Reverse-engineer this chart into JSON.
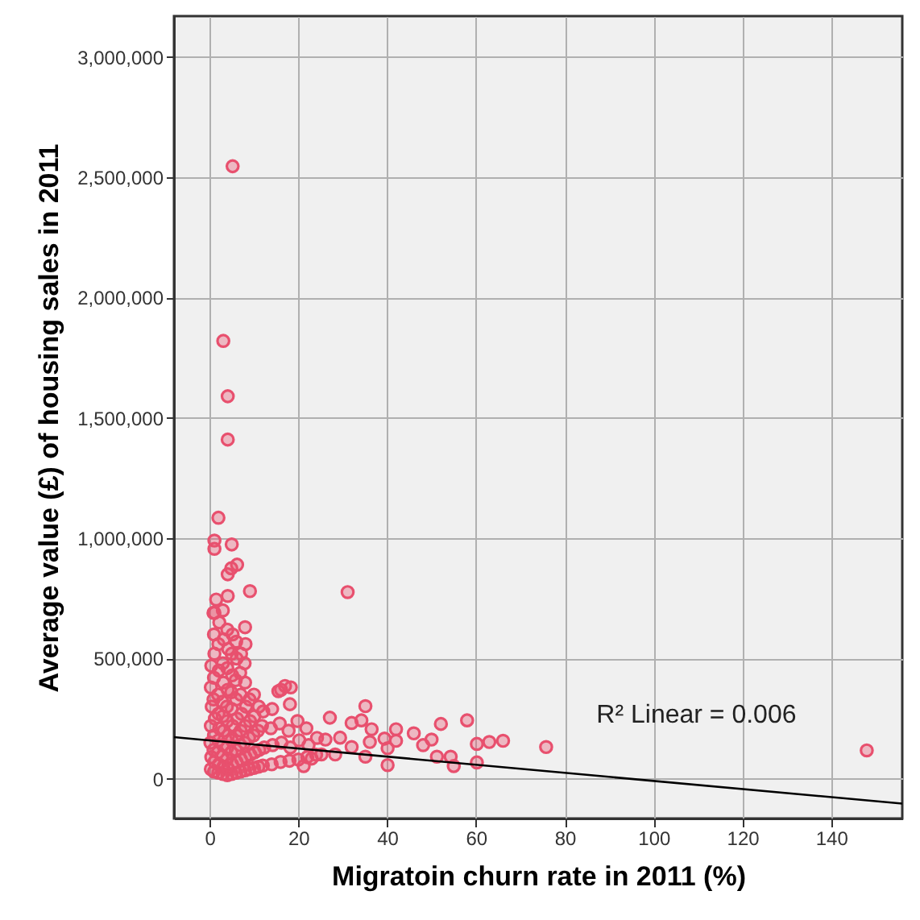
{
  "chart_data": {
    "type": "scatter",
    "xlabel": "Migratoin churn rate in 2011 (%)",
    "ylabel": "Average value (£) of housing sales in 2011",
    "xlim": [
      -8,
      156
    ],
    "ylim": [
      -165000,
      3170000
    ],
    "xticks": [
      0,
      20,
      40,
      60,
      80,
      100,
      120,
      140
    ],
    "yticks": [
      {
        "value": 0,
        "label": "0"
      },
      {
        "value": 500000,
        "label": "500,000"
      },
      {
        "value": 1000000,
        "label": "1,000,000"
      },
      {
        "value": 1500000,
        "label": "1,500,000"
      },
      {
        "value": 2000000,
        "label": "2,000,000"
      },
      {
        "value": 2500000,
        "label": "2,500,000"
      },
      {
        "value": 3000000,
        "label": "3,000,000"
      }
    ],
    "grid": true,
    "annotations": [
      "R² Linear = 0.006"
    ],
    "series": [
      {
        "marker": "circle",
        "color": "#e8506e",
        "x": [
          5.2,
          3.1,
          4.1,
          4.1,
          2,
          1.1,
          1.1,
          5,
          6.2,
          4.9,
          4.1,
          4.1,
          9.1,
          1.5,
          1.1,
          31.1,
          27.1,
          35.1,
          32,
          34.2,
          36.5,
          42,
          52.1,
          58,
          46,
          50,
          63,
          66.1,
          60.2,
          75.8,
          148,
          60.2,
          55,
          54.3,
          51.2,
          40.1,
          48.1,
          40.1,
          35.1,
          32,
          39.4,
          29.4,
          26.1,
          23,
          21.2,
          28.3,
          25.2,
          36.1,
          42,
          17,
          15.5,
          0.3,
          0.4,
          0.2,
          0.3,
          0.5,
          0.3,
          0.4,
          1,
          1.1,
          0.9,
          1,
          1.2,
          0.9,
          1,
          1.1,
          1,
          0.9,
          2,
          2.1,
          1.9,
          2,
          2.2,
          2,
          1.9,
          2.1,
          2,
          2.2,
          3,
          3.1,
          2.9,
          3,
          3.2,
          3,
          2.9,
          3.1,
          3,
          3.2,
          3,
          4,
          4.1,
          3.9,
          4,
          4.2,
          4,
          3.9,
          4.1,
          4,
          4.2,
          4,
          5,
          5.1,
          4.9,
          5,
          5.2,
          5,
          4.9,
          5.1,
          5,
          5.2,
          6,
          6.1,
          5.9,
          6,
          6.2,
          6,
          5.9,
          6.1,
          6,
          7,
          7.1,
          6.9,
          7,
          7.2,
          7,
          6.9,
          7.1,
          8,
          8.1,
          7.9,
          8,
          8.2,
          8,
          7.9,
          8.1,
          8,
          9,
          9.2,
          8.9,
          9.1,
          9,
          10,
          10.2,
          9.9,
          10.1,
          10,
          11,
          11.2,
          10.9,
          11.1,
          12,
          12.3,
          11.8,
          12.1,
          14,
          14.2,
          13.8,
          14.1,
          16,
          16.2,
          15.8,
          16.1,
          18,
          18.2,
          17.8,
          18.1,
          18.3,
          20,
          20.2,
          19.8,
          22,
          22.3,
          21.8,
          24,
          24.2
        ],
        "values": [
          2546000,
          1820000,
          1590000,
          1410000,
          1085000,
          990000,
          956000,
          974000,
          890000,
          875000,
          850000,
          760000,
          780000,
          745000,
          690000,
          776000,
          254000,
          302000,
          232000,
          243000,
          206000,
          206000,
          228000,
          243000,
          189000,
          163000,
          153000,
          158000,
          145000,
          132000,
          118000,
          68000,
          53000,
          92000,
          92000,
          57000,
          140000,
          127000,
          92000,
          132000,
          167000,
          171000,
          163000,
          84000,
          53000,
          101000,
          101000,
          153000,
          158000,
          386000,
          364000,
          40000,
          90000,
          150000,
          220000,
          300000,
          380000,
          470000,
          30000,
          70000,
          120000,
          180000,
          250000,
          330000,
          420000,
          520000,
          600000,
          690000,
          25000,
          60000,
          110000,
          160000,
          210000,
          270000,
          350000,
          450000,
          560000,
          650000,
          20000,
          50000,
          95000,
          140000,
          200000,
          260000,
          320000,
          400000,
          480000,
          580000,
          700000,
          15000,
          45000,
          80000,
          130000,
          180000,
          240000,
          300000,
          370000,
          460000,
          540000,
          620000,
          20000,
          60000,
          110000,
          160000,
          220000,
          290000,
          360000,
          430000,
          520000,
          600000,
          25000,
          70000,
          120000,
          180000,
          250000,
          330000,
          410000,
          500000,
          570000,
          30000,
          80000,
          140000,
          200000,
          270000,
          350000,
          440000,
          520000,
          35000,
          90000,
          150000,
          220000,
          300000,
          400000,
          480000,
          560000,
          630000,
          40000,
          100000,
          170000,
          240000,
          330000,
          45000,
          110000,
          180000,
          260000,
          350000,
          50000,
          120000,
          200000,
          300000,
          55000,
          130000,
          220000,
          280000,
          60000,
          140000,
          210000,
          290000,
          70000,
          150000,
          230000,
          370000,
          75000,
          130000,
          200000,
          310000,
          380000,
          80000,
          160000,
          240000,
          90000,
          140000,
          210000,
          100000,
          170000
        ]
      },
      {
        "type": "line",
        "color": "#000000",
        "x": [
          -8,
          156
        ],
        "values": [
          173000,
          -103000
        ]
      }
    ]
  }
}
